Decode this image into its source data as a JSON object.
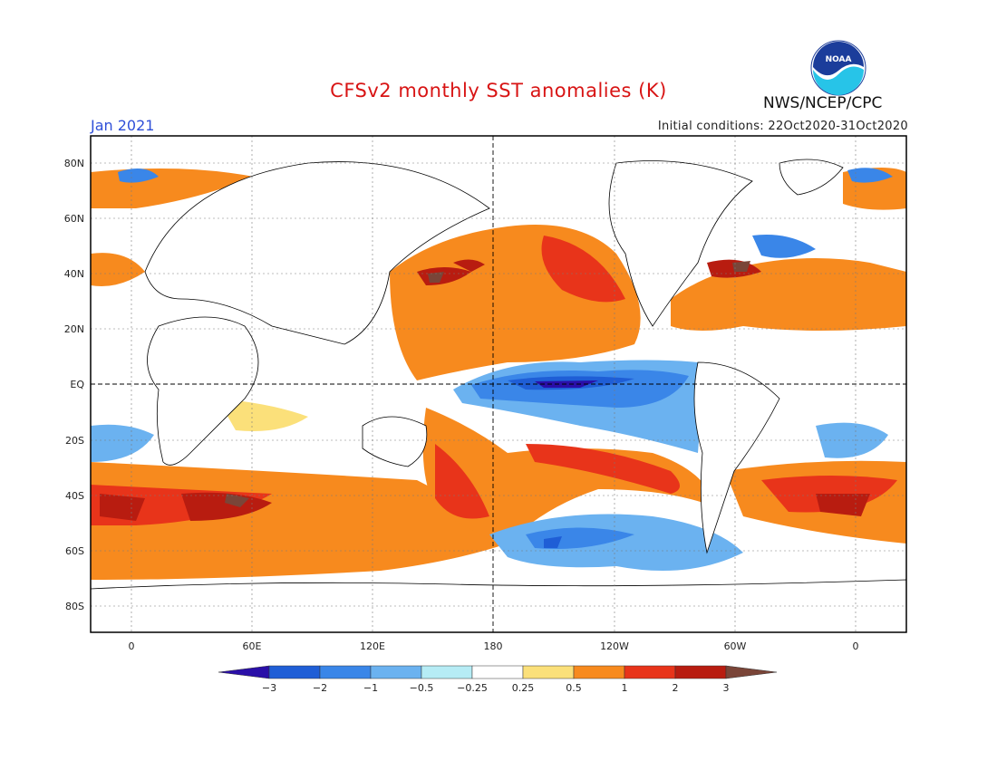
{
  "header": {
    "title": "CFSv2 monthly SST anomalies (K)",
    "organization": "NWS/NCEP/CPC",
    "month": "Jan 2021",
    "initial_conditions": "Initial conditions: 22Oct2020-31Oct2020",
    "logo_text": "NOAA"
  },
  "map": {
    "lat_labels": [
      "80N",
      "60N",
      "40N",
      "20N",
      "EQ",
      "20S",
      "40S",
      "60S",
      "80S"
    ],
    "lon_labels": [
      "0",
      "60E",
      "120E",
      "180",
      "120W",
      "60W",
      "0"
    ]
  },
  "colorbar": {
    "labels": [
      "−3",
      "−2",
      "−1",
      "−0.5",
      "−0.25",
      "0.25",
      "0.5",
      "1",
      "2",
      "3"
    ],
    "colors": [
      "#2a0fa8",
      "#1f5ed6",
      "#3a86e8",
      "#6bb2f0",
      "#b6ecf5",
      "#ffffff",
      "#fbe07a",
      "#f78a1e",
      "#e8341a",
      "#b81c10",
      "#7a4538"
    ]
  }
}
